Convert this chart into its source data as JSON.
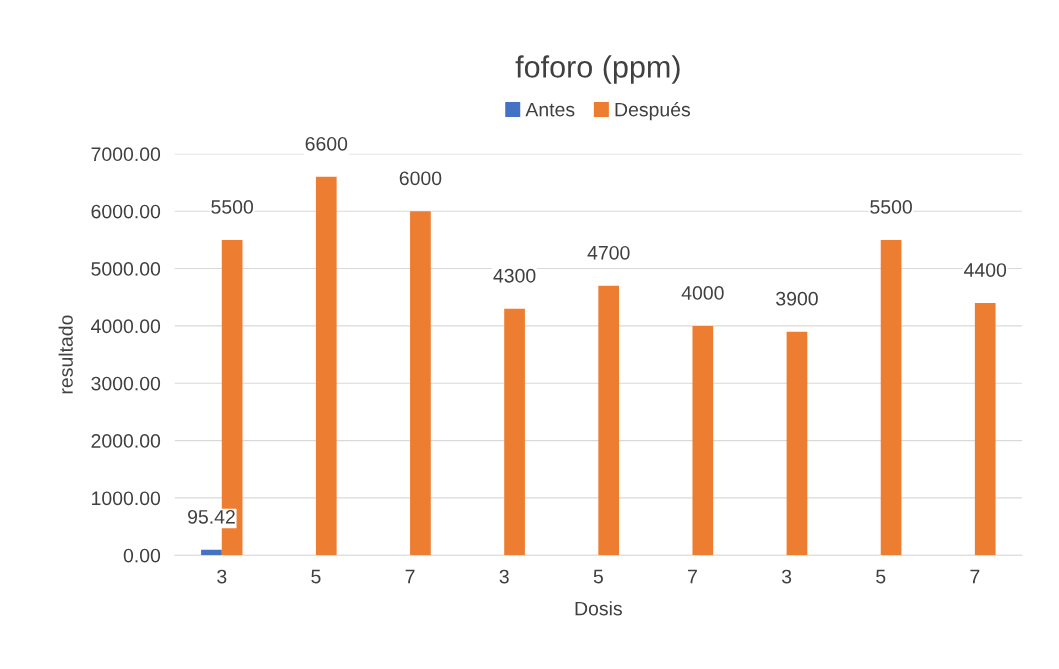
{
  "chart_data": {
    "type": "bar",
    "title": "foforo (ppm)",
    "xlabel": "Dosis",
    "ylabel": "resultado",
    "categories": [
      "3",
      "5",
      "7",
      "3",
      "5",
      "7",
      "3",
      "5",
      "7"
    ],
    "series": [
      {
        "name": "Antes",
        "color": "#4472c4",
        "values": [
          95.42,
          null,
          null,
          null,
          null,
          null,
          null,
          null,
          null
        ]
      },
      {
        "name": "Después",
        "color": "#ed7d31",
        "values": [
          5500,
          6600,
          6000,
          4300,
          4700,
          4000,
          3900,
          5500,
          4400
        ]
      }
    ],
    "ylim": [
      0,
      7000
    ],
    "yticks": [
      {
        "value": 0,
        "label": "0.00"
      },
      {
        "value": 1000,
        "label": "1000.00"
      },
      {
        "value": 2000,
        "label": "2000.00"
      },
      {
        "value": 3000,
        "label": "3000.00"
      },
      {
        "value": 4000,
        "label": "4000.00"
      },
      {
        "value": 5000,
        "label": "5000.00"
      },
      {
        "value": 6000,
        "label": "6000.00"
      },
      {
        "value": 7000,
        "label": "7000.00"
      }
    ],
    "grid": "y",
    "legend": "top",
    "data_labels": true
  }
}
